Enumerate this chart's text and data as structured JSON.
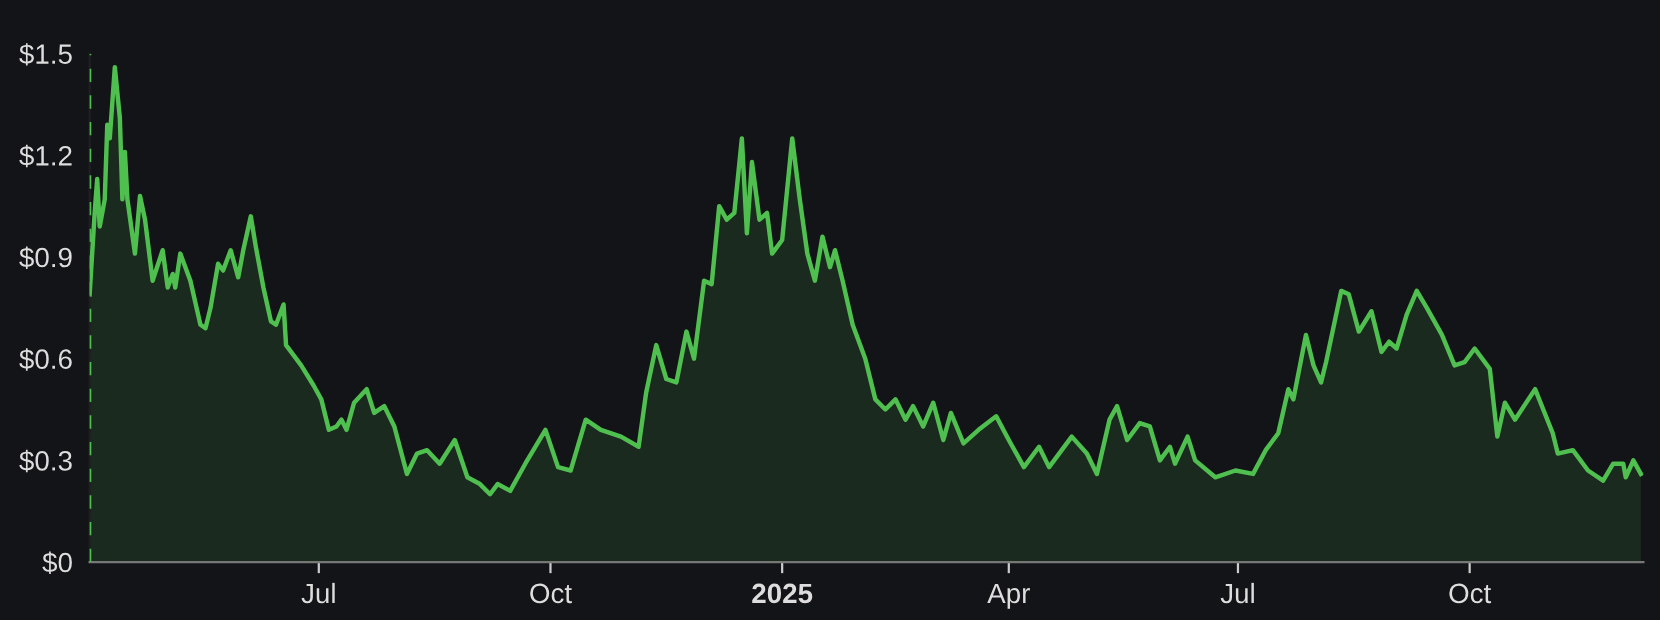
{
  "chart_data": {
    "type": "area",
    "x": [
      "2024-04-01",
      "2024-04-03",
      "2024-04-04",
      "2024-04-05",
      "2024-04-07",
      "2024-04-08",
      "2024-04-09",
      "2024-04-11",
      "2024-04-13",
      "2024-04-14",
      "2024-04-15",
      "2024-04-16",
      "2024-04-19",
      "2024-04-21",
      "2024-04-23",
      "2024-04-26",
      "2024-04-30",
      "2024-05-02",
      "2024-05-04",
      "2024-05-05",
      "2024-05-07",
      "2024-05-11",
      "2024-05-15",
      "2024-05-17",
      "2024-05-19",
      "2024-05-22",
      "2024-05-24",
      "2024-05-27",
      "2024-05-30",
      "2024-06-01",
      "2024-06-04",
      "2024-06-06",
      "2024-06-09",
      "2024-06-12",
      "2024-06-14",
      "2024-06-17",
      "2024-06-18",
      "2024-06-24",
      "2024-06-29",
      "2024-07-02",
      "2024-07-05",
      "2024-07-08",
      "2024-07-10",
      "2024-07-12",
      "2024-07-15",
      "2024-07-20",
      "2024-07-23",
      "2024-07-27",
      "2024-07-31",
      "2024-08-05",
      "2024-08-09",
      "2024-08-13",
      "2024-08-18",
      "2024-08-24",
      "2024-08-29",
      "2024-09-03",
      "2024-09-07",
      "2024-09-10",
      "2024-09-15",
      "2024-09-21",
      "2024-09-29",
      "2024-10-04",
      "2024-10-09",
      "2024-10-15",
      "2024-10-21",
      "2024-10-29",
      "2024-11-05",
      "2024-11-08",
      "2024-11-12",
      "2024-11-16",
      "2024-11-20",
      "2024-11-24",
      "2024-11-27",
      "2024-12-01",
      "2024-12-04",
      "2024-12-07",
      "2024-12-10",
      "2024-12-13",
      "2024-12-16",
      "2024-12-18",
      "2024-12-20",
      "2024-12-23",
      "2024-12-26",
      "2024-12-28",
      "2025-01-01",
      "2025-01-05",
      "2025-01-08",
      "2025-01-11",
      "2025-01-14",
      "2025-01-17",
      "2025-01-20",
      "2025-01-22",
      "2025-01-25",
      "2025-01-29",
      "2025-02-03",
      "2025-02-07",
      "2025-02-11",
      "2025-02-15",
      "2025-02-19",
      "2025-02-22",
      "2025-02-26",
      "2025-03-02",
      "2025-03-06",
      "2025-03-09",
      "2025-03-14",
      "2025-03-20",
      "2025-03-27",
      "2025-04-01",
      "2025-04-07",
      "2025-04-13",
      "2025-04-17",
      "2025-04-26",
      "2025-05-02",
      "2025-05-06",
      "2025-05-11",
      "2025-05-14",
      "2025-05-18",
      "2025-05-23",
      "2025-05-27",
      "2025-05-31",
      "2025-06-04",
      "2025-06-06",
      "2025-06-11",
      "2025-06-14",
      "2025-06-22",
      "2025-06-30",
      "2025-07-07",
      "2025-07-12",
      "2025-07-17",
      "2025-07-21",
      "2025-07-23",
      "2025-07-28",
      "2025-07-31",
      "2025-08-03",
      "2025-08-05",
      "2025-08-11",
      "2025-08-14",
      "2025-08-18",
      "2025-08-23",
      "2025-08-27",
      "2025-08-30",
      "2025-09-02",
      "2025-09-06",
      "2025-09-10",
      "2025-09-14",
      "2025-09-20",
      "2025-09-25",
      "2025-09-29",
      "2025-10-03",
      "2025-10-09",
      "2025-10-12",
      "2025-10-15",
      "2025-10-19",
      "2025-10-27",
      "2025-11-03",
      "2025-11-05",
      "2025-11-11",
      "2025-11-17",
      "2025-11-23",
      "2025-11-27",
      "2025-12-01",
      "2025-12-02",
      "2025-12-05",
      "2025-12-08"
    ],
    "series": [
      {
        "color": "#4fbf4f",
        "values": [
          0.79,
          1.03,
          1.13,
          0.99,
          1.07,
          1.29,
          1.25,
          1.46,
          1.31,
          1.07,
          1.21,
          1.07,
          0.91,
          1.08,
          1.01,
          0.83,
          0.92,
          0.81,
          0.85,
          0.81,
          0.91,
          0.83,
          0.7,
          0.69,
          0.75,
          0.88,
          0.86,
          0.92,
          0.84,
          0.92,
          1.02,
          0.93,
          0.81,
          0.71,
          0.7,
          0.76,
          0.64,
          0.58,
          0.52,
          0.48,
          0.39,
          0.4,
          0.42,
          0.39,
          0.47,
          0.51,
          0.44,
          0.46,
          0.4,
          0.26,
          0.32,
          0.33,
          0.29,
          0.36,
          0.25,
          0.23,
          0.2,
          0.23,
          0.21,
          0.29,
          0.39,
          0.28,
          0.27,
          0.42,
          0.39,
          0.37,
          0.34,
          0.5,
          0.64,
          0.54,
          0.53,
          0.68,
          0.6,
          0.83,
          0.82,
          1.05,
          1.01,
          1.03,
          1.25,
          0.97,
          1.18,
          1.01,
          1.03,
          0.91,
          0.95,
          1.25,
          1.07,
          0.91,
          0.83,
          0.96,
          0.87,
          0.92,
          0.83,
          0.7,
          0.6,
          0.48,
          0.45,
          0.48,
          0.42,
          0.46,
          0.4,
          0.47,
          0.36,
          0.44,
          0.35,
          0.39,
          0.43,
          0.36,
          0.28,
          0.34,
          0.28,
          0.37,
          0.32,
          0.26,
          0.42,
          0.46,
          0.36,
          0.41,
          0.4,
          0.3,
          0.34,
          0.29,
          0.37,
          0.3,
          0.25,
          0.27,
          0.26,
          0.33,
          0.38,
          0.51,
          0.48,
          0.67,
          0.58,
          0.53,
          0.59,
          0.8,
          0.79,
          0.68,
          0.74,
          0.62,
          0.65,
          0.63,
          0.73,
          0.8,
          0.75,
          0.67,
          0.58,
          0.59,
          0.63,
          0.57,
          0.37,
          0.47,
          0.42,
          0.51,
          0.38,
          0.32,
          0.33,
          0.27,
          0.24,
          0.29,
          0.29,
          0.25,
          0.3,
          0.26
        ]
      }
    ],
    "xlim": [
      "2024-04-01",
      "2025-12-09"
    ],
    "xticks": [
      {
        "value": "2024-07-01",
        "label": "Jul"
      },
      {
        "value": "2024-10-01",
        "label": "Oct"
      },
      {
        "value": "2025-01-01",
        "label": "2025"
      },
      {
        "value": "2025-04-01",
        "label": "Apr"
      },
      {
        "value": "2025-07-01",
        "label": "Jul"
      },
      {
        "value": "2025-10-01",
        "label": "Oct"
      }
    ],
    "ylim": [
      0,
      1.5
    ],
    "yticks": [
      {
        "value": 0,
        "label": "$0"
      },
      {
        "value": 0.3,
        "label": "$0.3"
      },
      {
        "value": 0.6,
        "label": "$0.6"
      },
      {
        "value": 0.9,
        "label": "$0.9"
      },
      {
        "value": 1.2,
        "label": "$1.2"
      },
      {
        "value": 1.5,
        "label": "$1.5"
      }
    ],
    "ref_lines": [
      {
        "axis": "x",
        "value": "2024-04-01",
        "color": "#4fbf4f",
        "line_style": "dashed"
      }
    ],
    "grid": false,
    "legend": false
  }
}
